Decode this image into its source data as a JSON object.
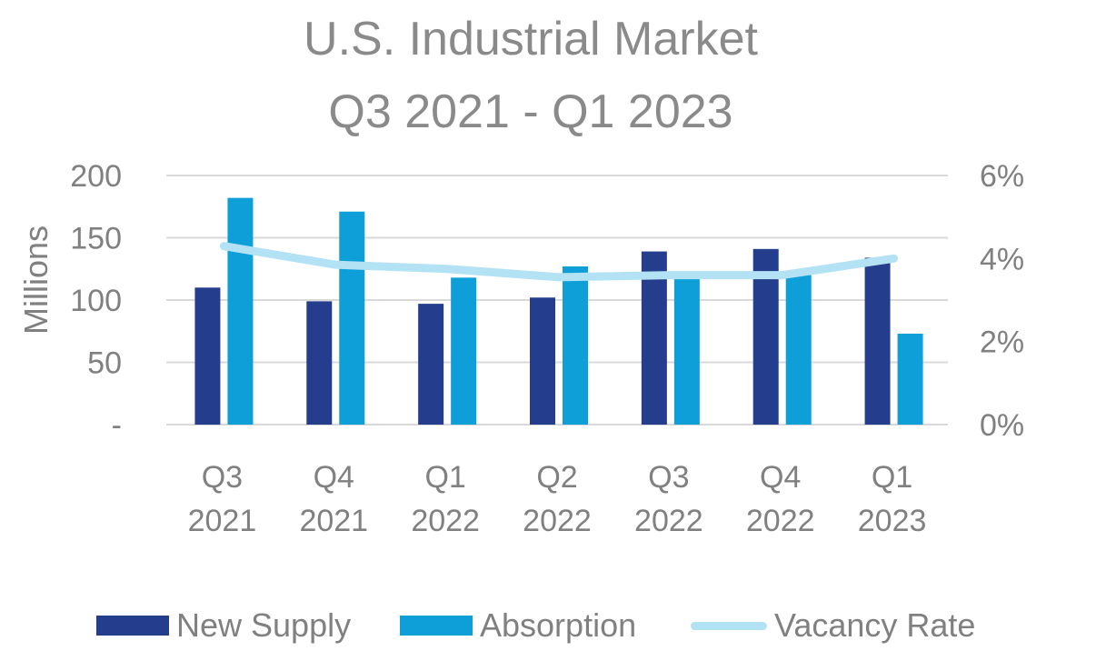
{
  "chart_data": {
    "type": "bar",
    "title_lines": [
      "U.S. Industrial Market",
      "Q3 2021 - Q1 2023"
    ],
    "ylabel": "Millions",
    "ylim": [
      0,
      200
    ],
    "y_ticks": [
      "-",
      "50",
      "100",
      "150",
      "200"
    ],
    "y_tick_values": [
      0,
      50,
      100,
      150,
      200
    ],
    "y2lim": [
      0,
      6
    ],
    "y2_ticks": [
      "0%",
      "2%",
      "4%",
      "6%"
    ],
    "y2_tick_values": [
      0,
      2,
      4,
      6
    ],
    "categories": [
      [
        "Q3",
        "2021"
      ],
      [
        "Q4",
        "2021"
      ],
      [
        "Q1",
        "2022"
      ],
      [
        "Q2",
        "2022"
      ],
      [
        "Q3",
        "2022"
      ],
      [
        "Q4",
        "2022"
      ],
      [
        "Q1",
        "2023"
      ]
    ],
    "series": [
      {
        "name": "New Supply",
        "kind": "bar",
        "axis": "left",
        "color": "#253d8d",
        "values": [
          110,
          99,
          97,
          102,
          139,
          141,
          134
        ]
      },
      {
        "name": "Absorption",
        "kind": "bar",
        "axis": "left",
        "color": "#0e9fd8",
        "values": [
          182,
          171,
          118,
          127,
          119,
          123,
          73
        ]
      },
      {
        "name": "Vacancy Rate",
        "kind": "line",
        "axis": "right",
        "color": "#b3e2f4",
        "values": [
          4.3,
          3.85,
          3.75,
          3.55,
          3.6,
          3.6,
          4.0
        ]
      }
    ],
    "grid": true,
    "legend_position": "bottom",
    "gridline_color": "#d9d9d9"
  }
}
